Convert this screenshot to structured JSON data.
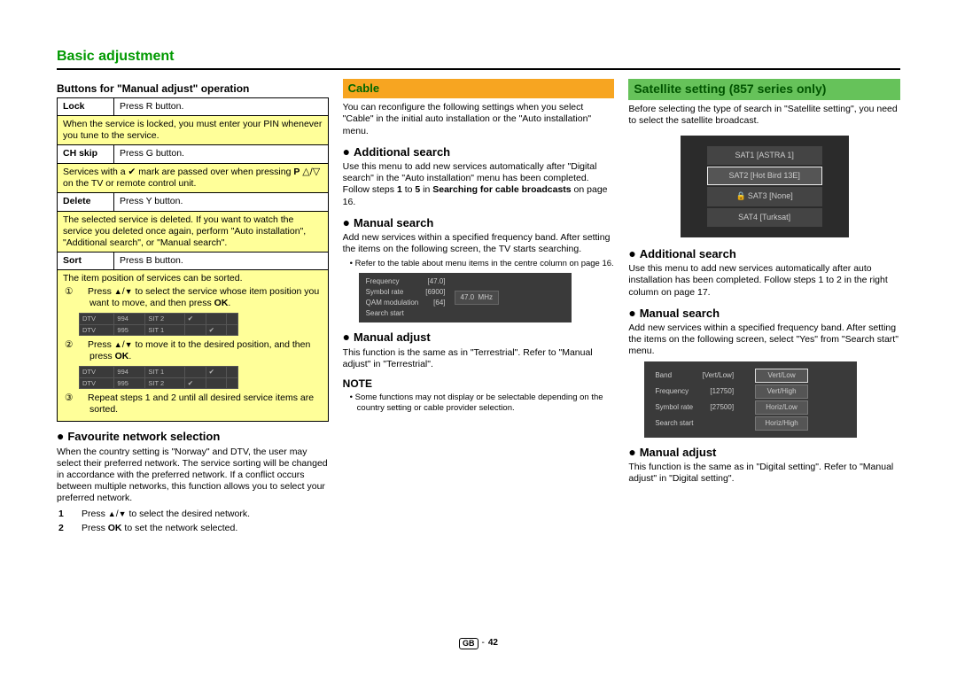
{
  "page": {
    "title": "Basic adjustment",
    "footer_region": "GB",
    "footer_page": "42"
  },
  "spec_table": {
    "heading": "Buttons for \"Manual adjust\" operation",
    "lock": {
      "label": "Lock",
      "action": "Press R button."
    },
    "lock_desc": "When the service is locked, you must enter your PIN whenever you tune to the service.",
    "chskip": {
      "label": "CH skip",
      "action": "Press G button."
    },
    "chskip_desc_a": "Services with a ",
    "chskip_desc_b": " mark are passed over when pressing ",
    "chskip_desc_c": " on the TV or remote control unit.",
    "delete": {
      "label": "Delete",
      "action": "Press Y button."
    },
    "delete_desc": "The selected service is deleted. If you want to watch the service you deleted once again, perform \"Auto installation\", \"Additional search\", or \"Manual search\".",
    "sort": {
      "label": "Sort",
      "action": "Press B button."
    },
    "sort_lead": "The item position of services can be sorted.",
    "sort_step1_a": "Press ",
    "sort_step1_b": " to select the service whose item position you want to move, and then press ",
    "sort_step1_c": ".",
    "sort_step2_a": "Press ",
    "sort_step2_b": " to move it to the desired position, and then press ",
    "sort_step2_c": ".",
    "sort_step3": "Repeat steps 1 and 2 until all desired service items are sorted.",
    "ok_label": "OK"
  },
  "dtv1": {
    "rows": [
      [
        "DTV",
        "994",
        "SIT 2",
        "✔",
        "",
        ""
      ],
      [
        "DTV",
        "995",
        "SIT 1",
        "",
        "✔",
        ""
      ]
    ]
  },
  "dtv2": {
    "rows": [
      [
        "DTV",
        "994",
        "SIT 1",
        "",
        "✔",
        ""
      ],
      [
        "DTV",
        "995",
        "SIT 2",
        "✔",
        "",
        ""
      ]
    ]
  },
  "favnet": {
    "heading": "Favourite network selection",
    "body": "When the country setting is \"Norway\" and DTV, the user may select their preferred network. The service sorting will be changed in accordance with the preferred network. If a conflict occurs between multiple networks, this function allows you to select your preferred network.",
    "step1_a": "Press ",
    "step1_b": " to select the desired network.",
    "step2_a": "Press ",
    "step2_b": " to set the network selected.",
    "ok_label": "OK"
  },
  "cable": {
    "banner": "Cable",
    "intro": "You can reconfigure the following settings when you select \"Cable\" in the initial auto installation or the \"Auto installation\" menu.",
    "add_heading": "Additional search",
    "add_body_a": "Use this menu to add new services automatically after \"Digital search\" in the \"Auto installation\" menu has been completed. Follow steps ",
    "add_body_b": " to ",
    "add_body_c": " in ",
    "add_body_bold": "Searching for cable broadcasts",
    "add_body_d": " on page 16.",
    "step_from": "1",
    "step_to": "5",
    "man_search_heading": "Manual search",
    "man_search_body": "Add new services within a specified frequency band. After setting the items on the following screen, the TV starts searching.",
    "man_search_note": "Refer to the table about menu items in the centre column on page 16.",
    "freqbox": {
      "rows": [
        [
          "Frequency",
          "[47.0]"
        ],
        [
          "Symbol rate",
          "[6900]"
        ],
        [
          "QAM modulation",
          "[64]"
        ],
        [
          "Search start",
          ""
        ]
      ],
      "side_value": "47.0",
      "side_unit": "MHz"
    },
    "man_adj_heading": "Manual adjust",
    "man_adj_body": "This function is the same as in \"Terrestrial\". Refer to \"Manual adjust\" in \"Terrestrial\".",
    "note_title": "NOTE",
    "note_bullet": "Some functions may not display or be selectable depending on the country setting or cable provider selection."
  },
  "satellite": {
    "banner": "Satellite setting (857 series only)",
    "intro": "Before selecting the type of search in \"Satellite setting\", you need to select the satellite broadcast.",
    "sat_list": [
      {
        "label": "SAT1 [ASTRA 1]",
        "active": false,
        "lock": false
      },
      {
        "label": "SAT2 [Hot Bird 13E]",
        "active": true,
        "lock": false
      },
      {
        "label": "SAT3 [None]",
        "active": false,
        "lock": true
      },
      {
        "label": "SAT4 [Turksat]",
        "active": false,
        "lock": false
      }
    ],
    "add_heading": "Additional search",
    "add_body": "Use this menu to add new services automatically after auto installation has been completed. Follow steps 1 to 2 in the right column on page 17.",
    "man_search_heading": "Manual search",
    "man_search_body": "Add new services within a specified frequency band. After setting the items on the following screen, select \"Yes\" from \"Search start\" menu.",
    "bandbox": {
      "rows": [
        [
          "Band",
          "[Vert/Low]"
        ],
        [
          "Frequency",
          "[12750]"
        ],
        [
          "Symbol rate",
          "[27500]"
        ],
        [
          "Search start",
          ""
        ]
      ],
      "options": [
        "Vert/Low",
        "Vert/High",
        "Horiz/Low",
        "Horiz/High"
      ]
    },
    "man_adj_heading": "Manual adjust",
    "man_adj_body": "This function is the same as in \"Digital setting\". Refer to \"Manual adjust\" in \"Digital setting\"."
  },
  "colors": {
    "green": "#009900",
    "orange_banner": "#f7a521",
    "green_banner": "#66c25a",
    "yellow_highlight": "#ffff99",
    "dark_ui_bg": "#3a3a3a",
    "dark_ui_text": "#cccccc"
  }
}
